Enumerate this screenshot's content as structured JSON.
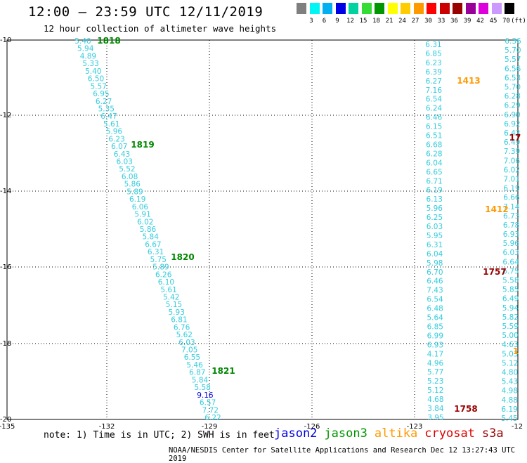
{
  "header": {
    "title": "12:00 – 23:59 UTC 12/11/2019",
    "subtitle": "12 hour collection of altimeter wave heights"
  },
  "legend": {
    "unit": "(ft)",
    "colors": [
      "#7f7f7f",
      "#00f5f5",
      "#00b0f0",
      "#0000e6",
      "#00d2a0",
      "#33dd33",
      "#009600",
      "#ffff00",
      "#ffcc00",
      "#ff9900",
      "#ff0000",
      "#cc0000",
      "#990000",
      "#990099",
      "#dd00dd",
      "#cc99ff",
      "#000000"
    ],
    "labels": [
      "3",
      "6",
      "9",
      "12",
      "15",
      "18",
      "21",
      "24",
      "27",
      "30",
      "33",
      "36",
      "39",
      "42",
      "45",
      "70"
    ]
  },
  "axes": {
    "lon_labels": [
      "-135",
      "-132",
      "-129",
      "-126",
      "-123",
      "-12"
    ],
    "lat_labels": [
      "-10",
      "-12",
      "-14",
      "-16",
      "-18",
      "-20"
    ]
  },
  "tracks": {
    "track1_values": [
      "5.40",
      "5.94",
      "4.89",
      "5.33",
      "5.40",
      "6.50",
      "5.57",
      "6.95",
      "6.27",
      "5.35",
      "6.47",
      "5.61",
      "5.96",
      "6.23",
      "6.07",
      "6.43",
      "6.03",
      "5.52",
      "6.08",
      "5.86",
      "5.89",
      "6.19",
      "6.06",
      "5.91",
      "6.02",
      "5.86",
      "5.84",
      "6.67",
      "6.31",
      "5.75",
      "5.89",
      "6.26",
      "6.10",
      "5.61",
      "5.42",
      "5.15",
      "5.93",
      "6.81",
      "6.76",
      "5.62",
      "6.03",
      "7.05",
      "6.55",
      "5.46",
      "6.87",
      "5.84",
      "5.58",
      "9.16",
      "6.57",
      "7.72",
      "6.22"
    ],
    "track2_values": [
      "6.31",
      "6.85",
      "6.23",
      "6.39",
      "6.27",
      "7.16",
      "6.54",
      "6.24",
      "6.46",
      "6.15",
      "6.51",
      "6.68",
      "6.28",
      "6.04",
      "6.65",
      "6.71",
      "6.19",
      "6.13",
      "5.96",
      "6.25",
      "6.03",
      "5.95",
      "6.31",
      "6.04",
      "5.98",
      "6.70",
      "6.46",
      "7.43",
      "6.54",
      "6.48",
      "5.64",
      "6.85",
      "6.99",
      "6.93",
      "4.17",
      "4.96",
      "5.77",
      "5.23",
      "5.12",
      "4.68",
      "3.84",
      "3.95"
    ],
    "track3_values": [
      "6.36",
      "5.70",
      "5.57",
      "6.56",
      "6.53",
      "5.70",
      "6.28",
      "6.29",
      "6.90",
      "6.92",
      "6.43",
      "6.49",
      "7.39",
      "7.06",
      "6.02",
      "7.01",
      "6.19",
      "6.66",
      "7.14",
      "6.73",
      "6.78",
      "6.93",
      "5.96",
      "6.03",
      "6.64",
      "6.75",
      "5.58",
      "5.85",
      "6.49",
      "5.94",
      "5.82",
      "5.59",
      "5.00",
      "4.63",
      "5.03",
      "5.12",
      "4.80",
      "5.43",
      "4.98",
      "4.88",
      "6.19",
      "5.45"
    ],
    "time_labels": [
      {
        "text": "1818",
        "color": "#008800"
      },
      {
        "text": "1819",
        "color": "#008800"
      },
      {
        "text": "1820",
        "color": "#008800"
      },
      {
        "text": "1821",
        "color": "#008800"
      },
      {
        "text": "1413",
        "color": "#ff9900"
      },
      {
        "text": "1412",
        "color": "#ff9900"
      },
      {
        "text": "1757",
        "color": "#990000"
      },
      {
        "text": "1758",
        "color": "#990000"
      },
      {
        "text": "17",
        "color": "#990000"
      },
      {
        "text": "1",
        "color": "#ff9900"
      }
    ],
    "track_color": "#33ccdd",
    "highlight_color": "#0000dd"
  },
  "footer": {
    "note": "note: 1) Time is in UTC; 2) SWH is in feet",
    "satellites": [
      {
        "name": "jason2",
        "color": "#0000dd"
      },
      {
        "name": "jason3",
        "color": "#009600"
      },
      {
        "name": "altika",
        "color": "#ff9900"
      },
      {
        "name": "cryosat",
        "color": "#dd0000"
      },
      {
        "name": "s3a",
        "color": "#990000"
      }
    ],
    "credit": "NOAA/NESDIS Center for Satellite Applications and Research    Dec 12 13:27:43 UTC 2019"
  }
}
